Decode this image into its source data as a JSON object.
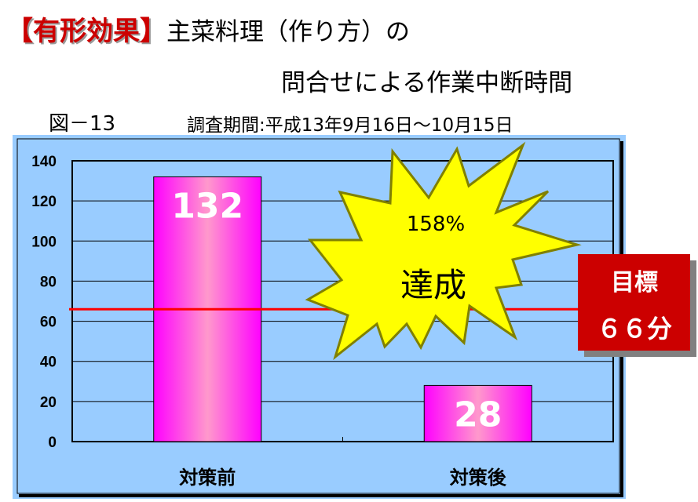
{
  "header": {
    "highlight": "【有形効果】",
    "title_line1": "主菜料理（作り方）の",
    "title_line2": "問合せによる作業中断時間",
    "figure_label": "図－13",
    "survey_period": "調査期間:平成13年9月16日～10月15日"
  },
  "callout": {
    "percent": "158%",
    "text": "達成"
  },
  "target": {
    "label": "目標",
    "value_text": "６６分",
    "value": 66
  },
  "colors": {
    "panel": "#99ccff",
    "bar": "#ff00ff",
    "bar_center": "#ff99cc",
    "target_line": "#ff0000",
    "target_box": "#cc0000",
    "burst": "#ffff00",
    "burst_stroke": "#808000"
  },
  "chart_data": {
    "type": "bar",
    "categories": [
      "対策前",
      "対策後"
    ],
    "values": [
      132,
      28
    ],
    "data_labels": [
      "132",
      "28"
    ],
    "ylim": [
      0,
      140
    ],
    "yticks": [
      "0",
      "20",
      "40",
      "60",
      "80",
      "100",
      "120",
      "140"
    ],
    "grid": true,
    "reference_line": 66
  }
}
